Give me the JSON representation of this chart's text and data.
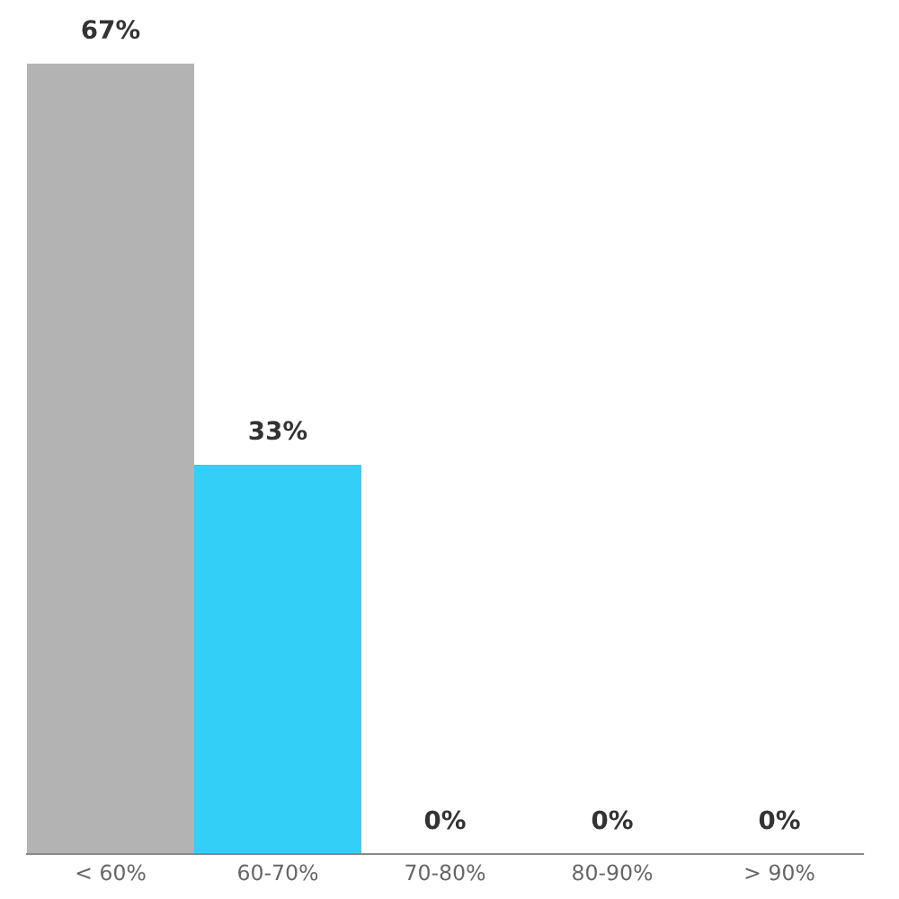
{
  "chart_data": {
    "type": "bar",
    "categories": [
      "< 60%",
      "60-70%",
      "70-80%",
      "80-90%",
      "> 90%"
    ],
    "values": [
      67,
      33,
      0,
      0,
      0
    ],
    "colors": [
      "#b3b3b3",
      "#33cff7",
      "#33cff7",
      "#33cff7",
      "#33cff7"
    ],
    "value_labels": [
      "67%",
      "33%",
      "0%",
      "0%",
      "0%"
    ],
    "grid": false,
    "legend": false
  }
}
